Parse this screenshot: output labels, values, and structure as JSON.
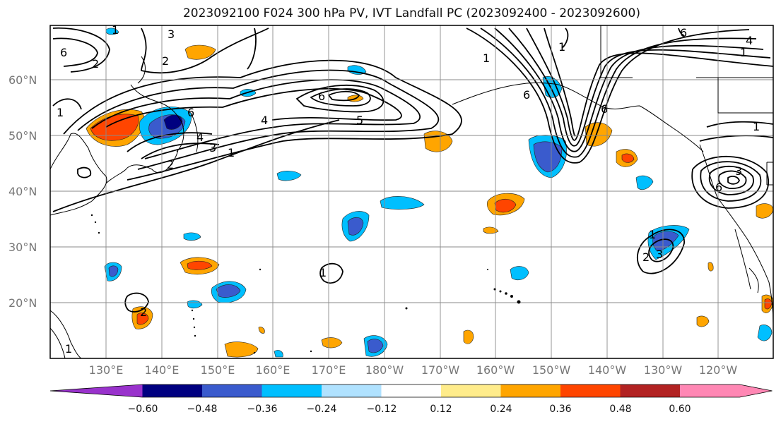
{
  "title": "2023092100 F024 300 hPa PV, IVT Landfall PC (2023092400 - 2023092600)",
  "lat_labels": [
    "60°N",
    "50°N",
    "40°N",
    "30°N",
    "20°N"
  ],
  "lon_labels": [
    "130°E",
    "140°E",
    "150°E",
    "160°E",
    "170°E",
    "180°W",
    "170°W",
    "160°W",
    "150°W",
    "140°W",
    "130°W",
    "120°W"
  ],
  "colorbar": {
    "ticks": [
      "−0.60",
      "−0.48",
      "−0.36",
      "−0.24",
      "−0.12",
      "0.12",
      "0.24",
      "0.36",
      "0.48",
      "0.60"
    ],
    "colors": [
      "#9932cc",
      "#000080",
      "#3a5bcd",
      "#00bfff",
      "#b0e2ff",
      "#ffffff",
      "#ffec8b",
      "#ffa500",
      "#ff4500",
      "#b22222",
      "#ff87b4"
    ]
  },
  "contour_labels": [
    "3",
    "2",
    "1",
    "6",
    "6",
    "4",
    "3",
    "2",
    "1",
    "4",
    "6",
    "5",
    "1",
    "1",
    "6",
    "1",
    "3",
    "1",
    "3",
    "4",
    "2",
    "6",
    "1",
    "2",
    "1",
    "6",
    "1",
    "6",
    "2",
    "1"
  ]
}
